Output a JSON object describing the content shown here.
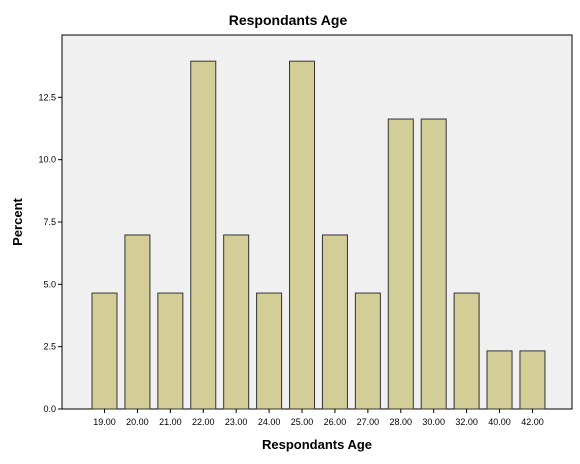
{
  "chart_data": {
    "type": "bar",
    "title": "Respondants Age",
    "xlabel": "Respondants Age",
    "ylabel": "Percent",
    "categories": [
      "19.00",
      "20.00",
      "21.00",
      "22.00",
      "23.00",
      "24.00",
      "25.00",
      "26.00",
      "27.00",
      "28.00",
      "30.00",
      "32.00",
      "40.00",
      "42.00"
    ],
    "values": [
      4.65,
      6.98,
      4.65,
      13.95,
      6.98,
      4.65,
      13.95,
      6.98,
      4.65,
      11.63,
      11.63,
      4.65,
      2.33,
      2.33
    ],
    "yticks": [
      "0.0",
      "2.5",
      "5.0",
      "7.5",
      "10.0",
      "12.5"
    ],
    "ylim": [
      0,
      15
    ],
    "grid": false,
    "colors": {
      "plot_background": "#f0f0f0",
      "bar_fill": "#d3ce97",
      "bar_stroke": "#333333",
      "frame": "#000000"
    }
  }
}
